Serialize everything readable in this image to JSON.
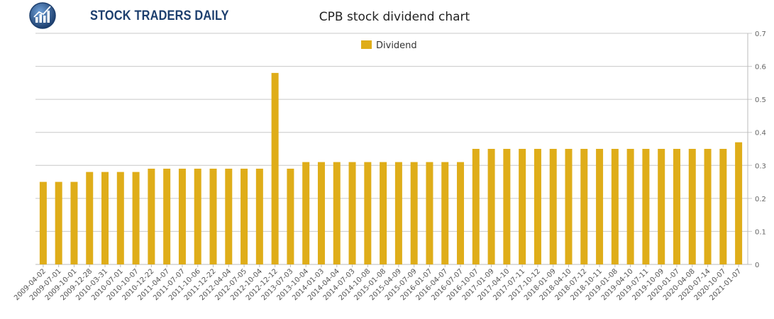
{
  "brand": {
    "name": "STOCK TRADERS DAILY"
  },
  "chart_data": {
    "type": "bar",
    "title": "CPB stock dividend chart",
    "legend": {
      "position": "top-center"
    },
    "series": [
      {
        "name": "Dividend",
        "color": "#dfad19",
        "values": [
          0.25,
          0.25,
          0.25,
          0.28,
          0.28,
          0.28,
          0.28,
          0.29,
          0.29,
          0.29,
          0.29,
          0.29,
          0.29,
          0.29,
          0.29,
          0.58,
          0.29,
          0.31,
          0.31,
          0.31,
          0.31,
          0.31,
          0.31,
          0.31,
          0.31,
          0.31,
          0.31,
          0.31,
          0.35,
          0.35,
          0.35,
          0.35,
          0.35,
          0.35,
          0.35,
          0.35,
          0.35,
          0.35,
          0.35,
          0.35,
          0.35,
          0.35,
          0.35,
          0.35,
          0.35,
          0.37
        ]
      }
    ],
    "categories": [
      "2009-04-02",
      "2009-07-01",
      "2009-10-01",
      "2009-12-28",
      "2010-03-31",
      "2010-07-01",
      "2010-10-07",
      "2010-12-22",
      "2011-04-07",
      "2011-07-07",
      "2011-10-06",
      "2011-12-22",
      "2012-04-04",
      "2012-07-05",
      "2012-10-04",
      "2012-12-12",
      "2013-07-03",
      "2013-10-04",
      "2014-01-03",
      "2014-04-04",
      "2014-07-03",
      "2014-10-08",
      "2015-01-08",
      "2015-04-09",
      "2015-07-09",
      "2016-01-07",
      "2016-04-07",
      "2016-07-07",
      "2016-10-07",
      "2017-01-09",
      "2017-04-10",
      "2017-07-11",
      "2017-10-12",
      "2018-01-09",
      "2018-04-10",
      "2018-07-12",
      "2018-10-11",
      "2019-01-08",
      "2019-04-10",
      "2019-07-11",
      "2019-10-09",
      "2020-01-07",
      "2020-04-08",
      "2020-07-14",
      "2020-10-07",
      "2021-01-07"
    ],
    "yticks": [
      "0",
      "0.1",
      "0.2",
      "0.3",
      "0.4",
      "0.5",
      "0.6",
      "0.7"
    ],
    "ylim": [
      0,
      0.7
    ],
    "grid": true,
    "y_axis_side": "right",
    "axis_color": "#bbbbbb",
    "grid_color": "#c8c8c8"
  }
}
